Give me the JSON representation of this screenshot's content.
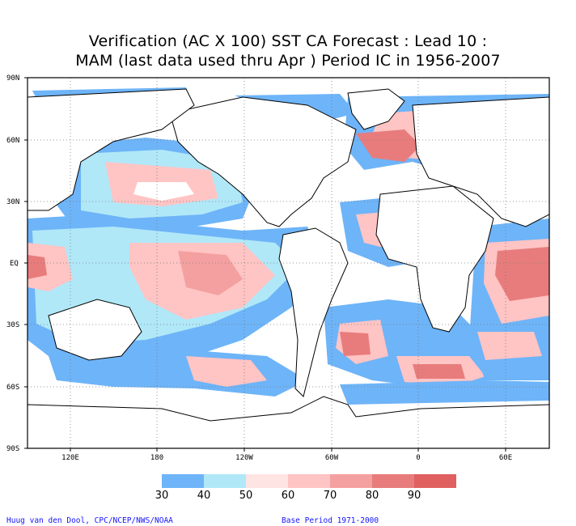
{
  "title": {
    "line1": "Verification (AC X 100) SST CA Forecast : Lead 10 :",
    "line2": "MAM (last data used thru Apr ) Period IC in 1956-2007"
  },
  "axes": {
    "lat_labels": [
      "90N",
      "60N",
      "30N",
      "30S",
      "EQ",
      "60S",
      "90S"
    ],
    "lon_labels": [
      "120E",
      "180",
      "120W",
      "60W",
      "0",
      "60E"
    ]
  },
  "colorbar": {
    "levels": [
      "30",
      "40",
      "50",
      "60",
      "70",
      "80",
      "90"
    ],
    "colors": [
      "#6eb4f8",
      "#b0e8f8",
      "#ffe4e4",
      "#ffc4c4",
      "#f4a0a0",
      "#e87c7c",
      "#e06060"
    ]
  },
  "credits": {
    "left": "Huug van den Dool, CPC/NCEP/NWS/NOAA",
    "right": "Base Period 1971-2000"
  }
}
